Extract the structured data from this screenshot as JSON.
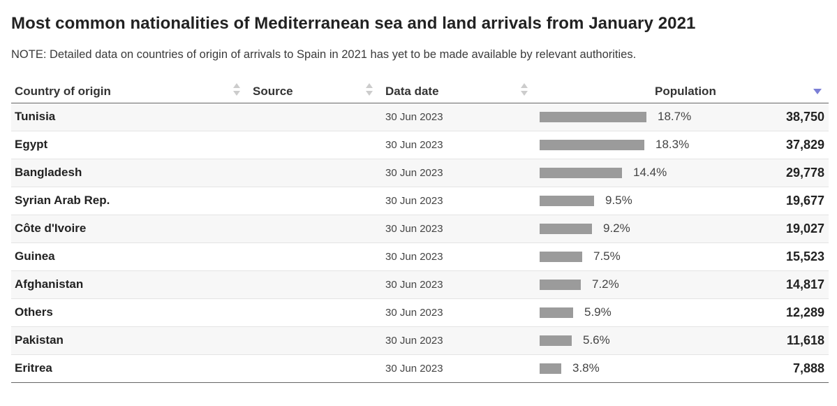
{
  "title": "Most common nationalities of Mediterranean sea and land arrivals from January 2021",
  "note": "NOTE: Detailed data on countries of origin of arrivals to Spain in 2021 has yet to be made available by relevant authorities.",
  "colors": {
    "bar": "#9b9b9b",
    "sort_inactive": "#cccccc",
    "sort_active": "#7b7fd6"
  },
  "columns": {
    "country": "Country of origin",
    "source": "Source",
    "date": "Data date",
    "population": "Population"
  },
  "sort": {
    "column": "population",
    "direction": "descending"
  },
  "rows": [
    {
      "country": "Tunisia",
      "source": "",
      "date": "30 Jun 2023",
      "percent_label": "18.7%",
      "percent": 18.7,
      "population": "38,750"
    },
    {
      "country": "Egypt",
      "source": "",
      "date": "30 Jun 2023",
      "percent_label": "18.3%",
      "percent": 18.3,
      "population": "37,829"
    },
    {
      "country": "Bangladesh",
      "source": "",
      "date": "30 Jun 2023",
      "percent_label": "14.4%",
      "percent": 14.4,
      "population": "29,778"
    },
    {
      "country": "Syrian Arab Rep.",
      "source": "",
      "date": "30 Jun 2023",
      "percent_label": "9.5%",
      "percent": 9.5,
      "population": "19,677"
    },
    {
      "country": "Côte d'Ivoire",
      "source": "",
      "date": "30 Jun 2023",
      "percent_label": "9.2%",
      "percent": 9.2,
      "population": "19,027"
    },
    {
      "country": "Guinea",
      "source": "",
      "date": "30 Jun 2023",
      "percent_label": "7.5%",
      "percent": 7.5,
      "population": "15,523"
    },
    {
      "country": "Afghanistan",
      "source": "",
      "date": "30 Jun 2023",
      "percent_label": "7.2%",
      "percent": 7.2,
      "population": "14,817"
    },
    {
      "country": "Others",
      "source": "",
      "date": "30 Jun 2023",
      "percent_label": "5.9%",
      "percent": 5.9,
      "population": "12,289"
    },
    {
      "country": "Pakistan",
      "source": "",
      "date": "30 Jun 2023",
      "percent_label": "5.6%",
      "percent": 5.6,
      "population": "11,618"
    },
    {
      "country": "Eritrea",
      "source": "",
      "date": "30 Jun 2023",
      "percent_label": "3.8%",
      "percent": 3.8,
      "population": "7,888"
    }
  ]
}
